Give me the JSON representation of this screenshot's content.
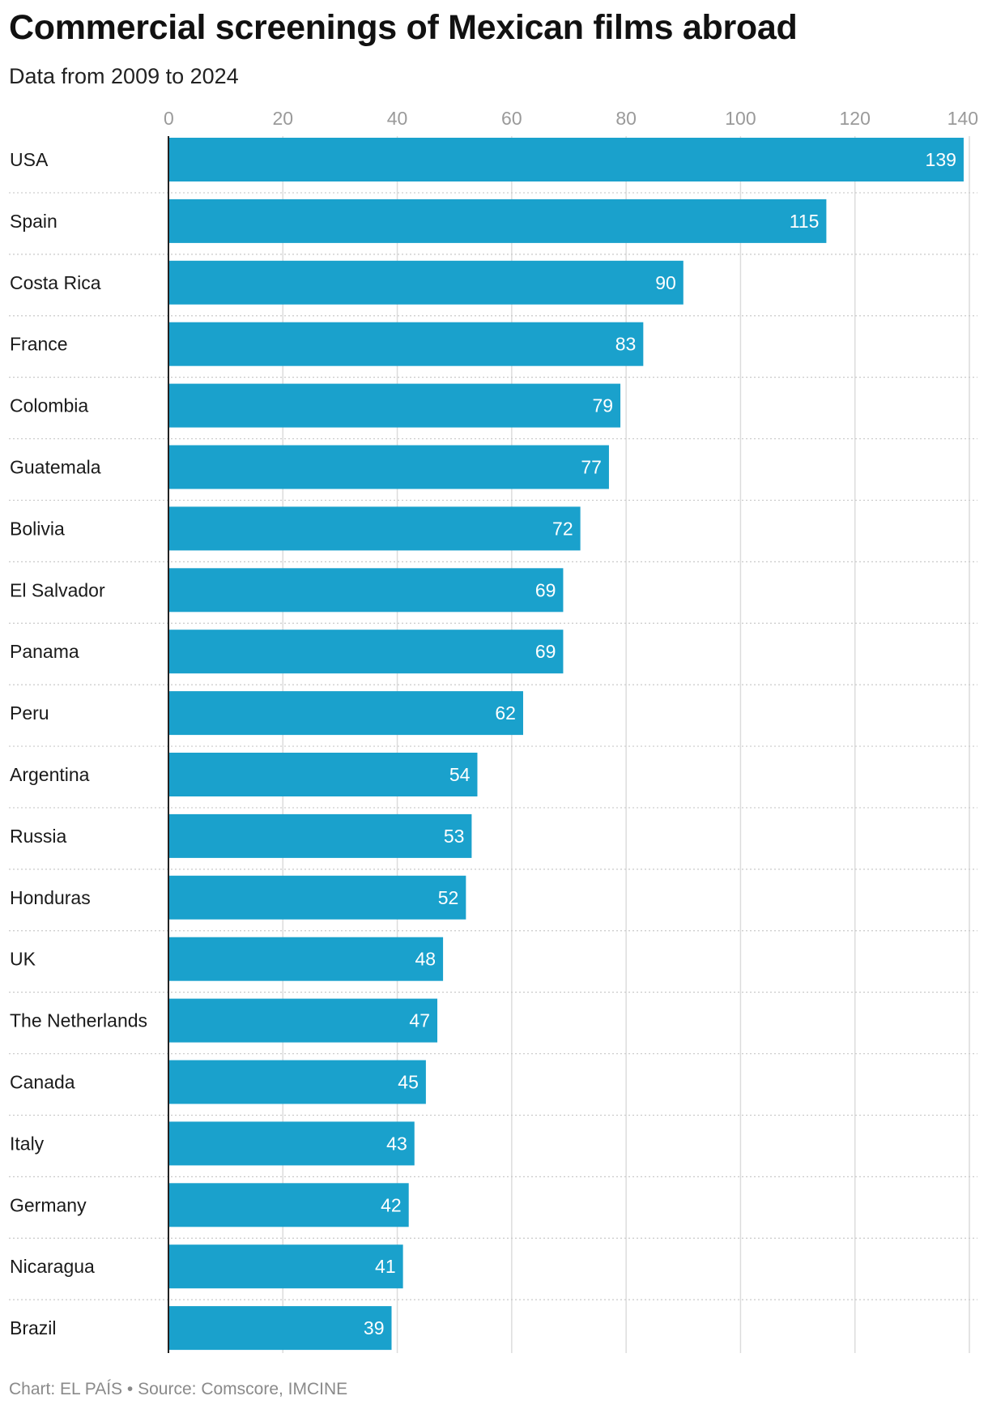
{
  "colors": {
    "bar": "#1aa1cc",
    "bar_label": "#ffffff",
    "axis_tick": "#9a9a9a",
    "grid": "#dcdcdc",
    "row_divider": "#c9c9c9",
    "baseline": "#222222",
    "footer": "#8a8a8a"
  },
  "footer": {
    "credit": "Chart: EL PAÍS",
    "separator": "•",
    "source": "Source: Comscore, IMCINE"
  },
  "chart_data": {
    "type": "bar",
    "orientation": "horizontal",
    "title": "Commercial screenings of Mexican films abroad",
    "subtitle": "Data from 2009 to 2024",
    "xlabel": "",
    "ylabel": "",
    "xlim": [
      0,
      140
    ],
    "ticks": [
      0,
      20,
      40,
      60,
      80,
      100,
      120,
      140
    ],
    "tick_labels": [
      "0",
      "20",
      "40",
      "60",
      "80",
      "100",
      "120",
      "140"
    ],
    "grid": true,
    "axis_position": "top",
    "categories": [
      "USA",
      "Spain",
      "Costa Rica",
      "France",
      "Colombia",
      "Guatemala",
      "Bolivia",
      "El Salvador",
      "Panama",
      "Peru",
      "Argentina",
      "Russia",
      "Honduras",
      "UK",
      "The Netherlands",
      "Canada",
      "Italy",
      "Germany",
      "Nicaragua",
      "Brazil"
    ],
    "values": [
      139,
      115,
      90,
      83,
      79,
      77,
      72,
      69,
      69,
      62,
      54,
      53,
      52,
      48,
      47,
      45,
      43,
      42,
      41,
      39
    ]
  }
}
